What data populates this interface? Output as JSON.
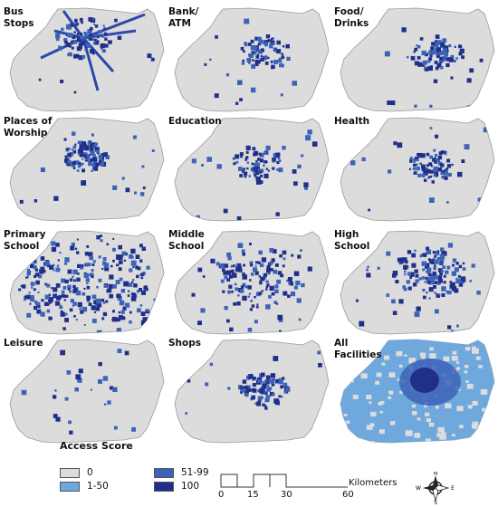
{
  "panels": [
    {
      "title": "Bus\nStops"
    },
    {
      "title": "Bank/\nATM"
    },
    {
      "title": "Food/\nDrinks"
    },
    {
      "title": "Places of\nWorship"
    },
    {
      "title": "Education"
    },
    {
      "title": "Health"
    },
    {
      "title": "Primary\nSchool"
    },
    {
      "title": "Middle\nSchool"
    },
    {
      "title": "High\nSchool"
    },
    {
      "title": "Leisure"
    },
    {
      "title": "Shops"
    },
    {
      "title": "All\nFacilities"
    }
  ],
  "legend": {
    "title": "Access Score",
    "items": [
      {
        "label": "0",
        "color": "#dcdcdc"
      },
      {
        "label": "1-50",
        "color": "#6fa8dc"
      },
      {
        "label": "51-99",
        "color": "#3d63b8"
      },
      {
        "label": "100",
        "color": "#1f2f8a"
      }
    ]
  },
  "scale": {
    "ticks": [
      "0",
      "15",
      "30",
      "60"
    ],
    "unit": "Kilometers"
  },
  "compass": {
    "n": "N",
    "s": "S",
    "e": "E",
    "w": "W"
  }
}
